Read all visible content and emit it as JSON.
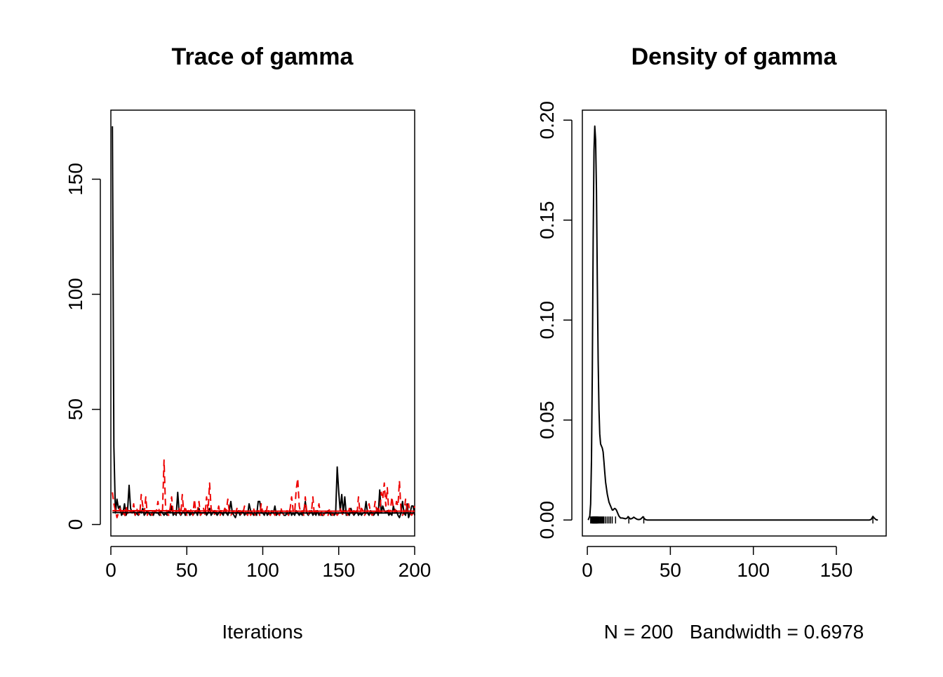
{
  "chart_data": [
    {
      "type": "line",
      "title": "Trace of gamma",
      "xlabel": "Iterations",
      "ylabel": "",
      "xlim": [
        0,
        200
      ],
      "ylim": [
        -5,
        180
      ],
      "xticks": [
        0,
        50,
        100,
        150,
        200
      ],
      "yticks": [
        0,
        50,
        100,
        150
      ],
      "series": [
        {
          "color": "#000000",
          "dash": "solid",
          "x": [
            1,
            2,
            3,
            4,
            5,
            6,
            7,
            8,
            9,
            10,
            11,
            12,
            13,
            14,
            15,
            16,
            17,
            18,
            19,
            20,
            21,
            22,
            23,
            24,
            25,
            26,
            27,
            28,
            29,
            30,
            31,
            32,
            33,
            34,
            35,
            36,
            37,
            38,
            39,
            40,
            41,
            42,
            43,
            44,
            45,
            46,
            47,
            48,
            49,
            50,
            51,
            52,
            53,
            54,
            55,
            56,
            57,
            58,
            59,
            60,
            61,
            62,
            63,
            64,
            65,
            66,
            67,
            68,
            69,
            70,
            71,
            72,
            73,
            74,
            75,
            76,
            77,
            78,
            79,
            80,
            81,
            82,
            83,
            84,
            85,
            86,
            87,
            88,
            89,
            90,
            91,
            92,
            93,
            94,
            95,
            96,
            97,
            98,
            99,
            100,
            101,
            102,
            103,
            104,
            105,
            106,
            107,
            108,
            109,
            110,
            111,
            112,
            113,
            114,
            115,
            116,
            117,
            118,
            119,
            120,
            121,
            122,
            123,
            124,
            125,
            126,
            127,
            128,
            129,
            130,
            131,
            132,
            133,
            134,
            135,
            136,
            137,
            138,
            139,
            140,
            141,
            142,
            143,
            144,
            145,
            146,
            147,
            148,
            149,
            150,
            151,
            152,
            153,
            154,
            155,
            156,
            157,
            158,
            159,
            160,
            161,
            162,
            163,
            164,
            165,
            166,
            167,
            168,
            169,
            170,
            171,
            172,
            173,
            174,
            175,
            176,
            177,
            178,
            179,
            180,
            181,
            182,
            183,
            184,
            185,
            186,
            187,
            188,
            189,
            190,
            191,
            192,
            193,
            194,
            195,
            196,
            197,
            198,
            199,
            200
          ],
          "y": [
            173,
            34,
            5,
            11,
            7,
            8,
            4,
            5,
            9,
            4,
            6,
            17,
            7,
            5,
            6,
            4,
            5,
            4,
            6,
            5,
            7,
            4,
            5,
            6,
            5,
            4,
            5,
            4,
            6,
            5,
            5,
            4,
            6,
            5,
            4,
            5,
            4,
            6,
            5,
            8,
            4,
            5,
            4,
            14,
            5,
            4,
            5,
            6,
            4,
            5,
            6,
            4,
            5,
            4,
            5,
            6,
            4,
            7,
            4,
            5,
            5,
            6,
            4,
            5,
            7,
            4,
            5,
            6,
            5,
            4,
            5,
            6,
            5,
            4,
            7,
            5,
            4,
            6,
            10,
            5,
            4,
            3,
            5,
            6,
            4,
            5,
            6,
            4,
            5,
            4,
            9,
            6,
            5,
            4,
            5,
            4,
            10,
            10,
            5,
            5,
            4,
            6,
            4,
            5,
            4,
            6,
            5,
            8,
            4,
            5,
            4,
            6,
            5,
            4,
            4,
            5,
            4,
            6,
            4,
            5,
            4,
            6,
            5,
            4,
            5,
            4,
            6,
            10,
            5,
            4,
            5,
            6,
            4,
            5,
            4,
            6,
            4,
            5,
            4,
            4,
            5,
            5,
            6,
            5,
            4,
            5,
            4,
            5,
            25,
            14,
            6,
            13,
            5,
            12,
            4,
            5,
            4,
            7,
            5,
            4,
            5,
            6,
            4,
            5,
            4,
            5,
            5,
            10,
            5,
            4,
            6,
            5,
            4,
            5,
            6,
            4,
            15,
            5,
            8,
            6,
            5,
            6,
            4,
            5,
            4,
            8,
            5,
            6,
            4,
            3,
            5,
            10,
            5,
            4,
            9,
            3,
            5,
            8,
            8,
            4
          ]
        },
        {
          "color": "#ee0000",
          "dash": "dashed",
          "x": [
            1,
            2,
            3,
            4,
            5,
            6,
            7,
            8,
            9,
            10,
            11,
            12,
            13,
            14,
            15,
            16,
            17,
            18,
            19,
            20,
            21,
            22,
            23,
            24,
            25,
            26,
            27,
            28,
            29,
            30,
            31,
            32,
            33,
            34,
            35,
            36,
            37,
            38,
            39,
            40,
            41,
            42,
            43,
            44,
            45,
            46,
            47,
            48,
            49,
            50,
            51,
            52,
            53,
            54,
            55,
            56,
            57,
            58,
            59,
            60,
            61,
            62,
            63,
            64,
            65,
            66,
            67,
            68,
            69,
            70,
            71,
            72,
            73,
            74,
            75,
            76,
            77,
            78,
            79,
            80,
            81,
            82,
            83,
            84,
            85,
            86,
            87,
            88,
            89,
            90,
            91,
            92,
            93,
            94,
            95,
            96,
            97,
            98,
            99,
            100,
            101,
            102,
            103,
            104,
            105,
            106,
            107,
            108,
            109,
            110,
            111,
            112,
            113,
            114,
            115,
            116,
            117,
            118,
            119,
            120,
            121,
            122,
            123,
            124,
            125,
            126,
            127,
            128,
            129,
            130,
            131,
            132,
            133,
            134,
            135,
            136,
            137,
            138,
            139,
            140,
            141,
            142,
            143,
            144,
            145,
            146,
            147,
            148,
            149,
            150,
            151,
            152,
            153,
            154,
            155,
            156,
            157,
            158,
            159,
            160,
            161,
            162,
            163,
            164,
            165,
            166,
            167,
            168,
            169,
            170,
            171,
            172,
            173,
            174,
            175,
            176,
            177,
            178,
            179,
            180,
            181,
            182,
            183,
            184,
            185,
            186,
            187,
            188,
            189,
            190,
            191,
            192,
            193,
            194,
            195,
            196,
            197,
            198,
            199,
            200
          ],
          "y": [
            14,
            9,
            6,
            3,
            5,
            7,
            4,
            6,
            3,
            8,
            5,
            4,
            6,
            5,
            9,
            4,
            7,
            5,
            4,
            13,
            8,
            5,
            12,
            4,
            6,
            5,
            4,
            7,
            5,
            6,
            10,
            5,
            4,
            6,
            28,
            8,
            5,
            4,
            7,
            12,
            5,
            4,
            6,
            5,
            7,
            4,
            13,
            5,
            8,
            4,
            6,
            5,
            7,
            4,
            11,
            5,
            6,
            10,
            4,
            5,
            7,
            4,
            12,
            6,
            18,
            7,
            5,
            4,
            6,
            5,
            8,
            4,
            6,
            5,
            7,
            6,
            11,
            5,
            4,
            5,
            6,
            4,
            7,
            5,
            6,
            4,
            5,
            8,
            5,
            4,
            6,
            4,
            5,
            7,
            4,
            5,
            6,
            4,
            9,
            5,
            5,
            4,
            8,
            5,
            4,
            6,
            5,
            4,
            6,
            5,
            4,
            7,
            5,
            4,
            5,
            6,
            4,
            7,
            12,
            6,
            5,
            15,
            20,
            8,
            5,
            6,
            4,
            12,
            5,
            4,
            6,
            5,
            12,
            4,
            6,
            5,
            9,
            4,
            6,
            4,
            5,
            6,
            4,
            7,
            5,
            4,
            6,
            5,
            4,
            5,
            7,
            5,
            4,
            6,
            5,
            4,
            7,
            5,
            4,
            6,
            5,
            4,
            12,
            5,
            7,
            6,
            4,
            5,
            6,
            9,
            5,
            4,
            5,
            10,
            6,
            8,
            5,
            14,
            11,
            18,
            8,
            16,
            5,
            6,
            12,
            7,
            5,
            10,
            8,
            19,
            6,
            4,
            5,
            11,
            6,
            9,
            5,
            4,
            5,
            8
          ]
        },
        {
          "color": "#ee0000",
          "dash": "solid",
          "x": [
            1,
            50,
            100,
            150,
            200
          ],
          "y": [
            6,
            5.9,
            5.8,
            5.8,
            5.8
          ]
        },
        {
          "color": "#000000",
          "dash": "solid",
          "x": [
            1,
            50,
            100,
            150,
            200
          ],
          "y": [
            5.2,
            5.1,
            5.0,
            5.0,
            5.0
          ]
        }
      ]
    },
    {
      "type": "line",
      "title": "Density of gamma",
      "xlabel": "N = 200   Bandwidth = 0.6978",
      "ylabel": "",
      "xlim": [
        -3,
        180
      ],
      "ylim": [
        -0.008,
        0.205
      ],
      "xticks": [
        0,
        50,
        100,
        150
      ],
      "yticks": [
        0.0,
        0.05,
        0.1,
        0.15,
        0.2
      ],
      "ytick_labels": [
        "0.00",
        "0.05",
        "0.10",
        "0.15",
        "0.20"
      ],
      "series": [
        {
          "color": "#000000",
          "dash": "solid",
          "x": [
            0.5,
            1.5,
            2.0,
            2.5,
            3.0,
            3.5,
            4.0,
            4.5,
            5.0,
            5.5,
            6.0,
            6.5,
            7.0,
            7.5,
            8.0,
            8.5,
            9.0,
            9.5,
            10.0,
            10.5,
            11.0,
            11.5,
            12.0,
            12.5,
            13.0,
            13.5,
            14.0,
            14.5,
            15.0,
            15.5,
            16.0,
            16.5,
            17.0,
            17.5,
            18.0,
            18.5,
            19.0,
            19.5,
            20.0,
            21.0,
            22.0,
            23.0,
            24.0,
            24.5,
            25.0,
            26.0,
            27.0,
            28.0,
            29.0,
            30.0,
            31.0,
            32.0,
            33.0,
            33.5,
            34.0,
            35.0,
            36.0,
            40.0,
            60.0,
            80.0,
            100.0,
            120.0,
            140.0,
            160.0,
            170.0,
            171.0,
            172.0,
            173.0,
            174.0,
            175.0
          ],
          "y": [
            0.0,
            0.002,
            0.008,
            0.03,
            0.075,
            0.14,
            0.185,
            0.197,
            0.19,
            0.165,
            0.12,
            0.08,
            0.055,
            0.043,
            0.038,
            0.037,
            0.036,
            0.034,
            0.029,
            0.024,
            0.019,
            0.016,
            0.013,
            0.011,
            0.009,
            0.008,
            0.007,
            0.006,
            0.005,
            0.005,
            0.0055,
            0.0058,
            0.0055,
            0.005,
            0.004,
            0.003,
            0.002,
            0.0015,
            0.001,
            0.001,
            0.0008,
            0.0006,
            0.001,
            0.0017,
            0.0012,
            0.0005,
            0.0008,
            0.0014,
            0.0008,
            0.0003,
            0.0002,
            0.0004,
            0.0012,
            0.0016,
            0.001,
            0.0002,
            0.0,
            0.0,
            0.0,
            0.0,
            0.0,
            0.0,
            0.0,
            0.0,
            0.0,
            0.0003,
            0.0018,
            0.0008,
            0.0001,
            0.0
          ]
        }
      ],
      "rug": [
        2,
        2.5,
        3,
        3.2,
        3.4,
        3.6,
        3.8,
        4,
        4.2,
        4.4,
        4.6,
        4.8,
        5,
        5.2,
        5.4,
        5.6,
        5.8,
        6,
        6.3,
        6.6,
        7,
        7.5,
        8,
        8.5,
        9,
        9.5,
        10,
        11,
        12,
        13,
        14,
        15,
        17,
        25,
        34,
        172
      ]
    }
  ]
}
